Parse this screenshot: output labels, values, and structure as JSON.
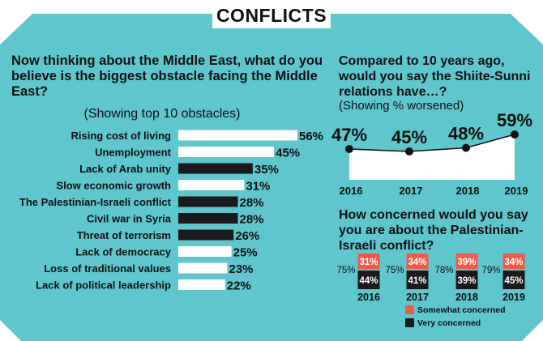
{
  "header": {
    "title": "CONFLICTS"
  },
  "obstacles": {
    "question": "Now thinking about the Middle East, what do you believe is the biggest obstacle facing the Middle East?",
    "subtitle": "(Showing top 10 obstacles)"
  },
  "shiite": {
    "question": "Compared to 10 years ago, would you say the  Shiite-Sunni relations have…?",
    "subtitle": "(Showing % worsened)"
  },
  "concern": {
    "question": "How concerned would you say you are about the Palestinian-Israeli conflict?"
  },
  "colors": {
    "teal": "#5ec6cc",
    "bar_white": "#ffffff",
    "bar_black": "#1a1a1a",
    "concern_red": "#f05a4b",
    "text": "#111111"
  },
  "chart_data": [
    {
      "type": "bar",
      "orientation": "horizontal",
      "categories": [
        "Rising cost of living",
        "Unemployment",
        "Lack of Arab unity",
        "Slow economic growth",
        "The Palestinian-Israeli conflict",
        "Civil war in Syria",
        "Threat of terrorism",
        "Lack of democracy",
        "Loss of traditional values",
        "Lack of political leadership"
      ],
      "values": [
        56,
        45,
        35,
        31,
        28,
        28,
        26,
        25,
        23,
        22
      ],
      "bar_colors": [
        "white",
        "white",
        "black",
        "white",
        "black",
        "black",
        "black",
        "white",
        "white",
        "white"
      ],
      "value_labels": [
        "56%",
        "45%",
        "35%",
        "31%",
        "28%",
        "28%",
        "26%",
        "25%",
        "23%",
        "22%"
      ],
      "xlim": [
        0,
        56
      ],
      "grid": false
    },
    {
      "type": "area",
      "x": [
        "2016",
        "2017",
        "2018",
        "2019"
      ],
      "values": [
        47,
        45,
        48,
        59
      ],
      "value_labels": [
        "47%",
        "45%",
        "48%",
        "59%"
      ],
      "markers": true,
      "grid": false
    },
    {
      "type": "bar",
      "stacked": true,
      "categories": [
        "2016",
        "2017",
        "2018",
        "2019"
      ],
      "series": [
        {
          "name": "Very concerned",
          "values": [
            44,
            41,
            39,
            45
          ],
          "labels": [
            "44%",
            "41%",
            "39%",
            "45%"
          ],
          "color": "black"
        },
        {
          "name": "Somewhat concerned",
          "values": [
            31,
            34,
            39,
            34
          ],
          "labels": [
            "31%",
            "34%",
            "39%",
            "34%"
          ],
          "color": "red"
        }
      ],
      "totals": [
        "75%",
        "75%",
        "78%",
        "79%"
      ],
      "legend": {
        "position": "bottom-right",
        "entries": [
          "Somewhat concerned",
          "Very concerned"
        ]
      },
      "grid": false
    }
  ]
}
